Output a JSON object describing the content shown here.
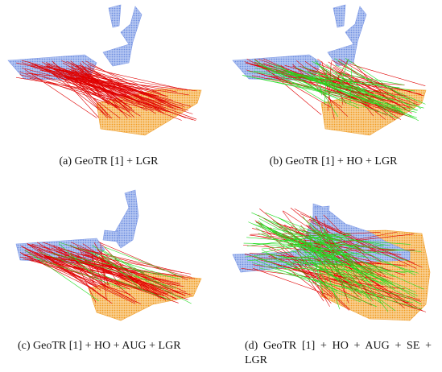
{
  "figures": [
    {
      "caption": "(a) GeoTR [1] + LGR"
    },
    {
      "caption": "(b) GeoTR [1] + HO + LGR"
    },
    {
      "caption": "(c) GeoTR [1] + HO + AUG + LGR"
    },
    {
      "caption": "(d) GeoTR [1] + HO + AUG + SE + LGR"
    }
  ]
}
